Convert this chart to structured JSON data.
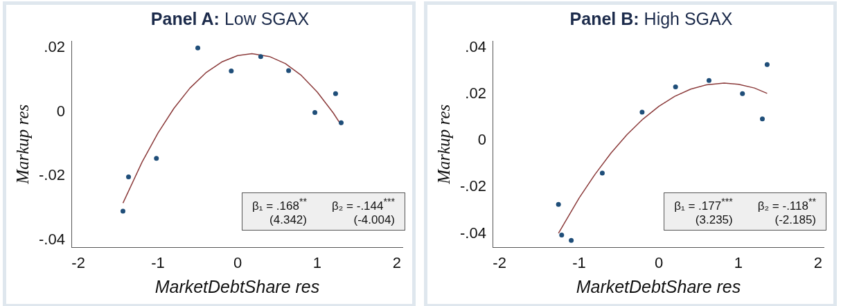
{
  "chart_data": [
    {
      "type": "scatter",
      "title": "Panel A: Low SGAX",
      "xlabel": "MarketDebtShare res",
      "ylabel": "Markup res",
      "xlim": [
        -2.08,
        2.07
      ],
      "ylim": [
        -0.0424,
        0.0222
      ],
      "xticks": [
        -2,
        -1,
        0,
        1,
        2
      ],
      "yticks": [
        {
          "value": -0.04,
          "label": "-.04"
        },
        {
          "value": -0.02,
          "label": "-.02"
        },
        0,
        {
          "value": 0.02,
          "label": ".02"
        }
      ],
      "grid": false,
      "legend": false,
      "marker": "circle",
      "annotations": [
        "β₁ = .168$^{**}$",
        "(4.342)",
        "β₂ = -.144$^{***}$",
        "(-4.004)"
      ],
      "series": [
        {
          "type": "scatter",
          "color": "#1f4e79",
          "x": [
            -1.44,
            -1.37,
            -1.02,
            -0.5,
            -0.08,
            0.29,
            0.64,
            0.97,
            1.23,
            1.3
          ],
          "values": [
            -0.031,
            -0.0203,
            -0.0145,
            0.02,
            0.0128,
            0.0173,
            0.0129,
            -0.0002,
            0.0057,
            -0.0034
          ]
        },
        {
          "type": "line",
          "color": "#8b3a3a",
          "marker": "none",
          "line_style": "solid",
          "x": [
            -1.44,
            -1.2,
            -1.0,
            -0.8,
            -0.6,
            -0.4,
            -0.2,
            0,
            0.18,
            0.4,
            0.6,
            0.8,
            1.0,
            1.2,
            1.3
          ],
          "values": [
            -0.0285,
            -0.0157,
            -0.0066,
            0.0011,
            0.0074,
            0.0122,
            0.0156,
            0.0176,
            0.0182,
            0.0173,
            0.0151,
            0.0114,
            0.0062,
            -0.0003,
            -0.0041
          ]
        }
      ]
    },
    {
      "type": "scatter",
      "title": "Panel B: High SGAX",
      "xlabel": "MarketDebtShare res",
      "ylabel": "Markup res",
      "xlim": [
        -2.08,
        2.07
      ],
      "ylim": [
        -0.046,
        0.043
      ],
      "xticks": [
        -2,
        -1,
        0,
        1,
        2
      ],
      "yticks": [
        {
          "value": -0.04,
          "label": "-.04"
        },
        {
          "value": -0.02,
          "label": "-.02"
        },
        0,
        {
          "value": 0.02,
          "label": ".02"
        },
        {
          "value": 0.04,
          "label": ".04"
        }
      ],
      "grid": false,
      "legend": false,
      "marker": "circle",
      "annotations": [
        "β₁ = .177$^{***}$",
        "(3.235)",
        "β₂ = -.118$^{**}$",
        "(-2.185)"
      ],
      "series": [
        {
          "type": "scatter",
          "color": "#1f4e79",
          "x": [
            -1.26,
            -1.22,
            -1.1,
            -0.71,
            -0.21,
            0.21,
            0.63,
            1.05,
            1.3,
            1.36
          ],
          "values": [
            -0.0274,
            -0.0406,
            -0.0429,
            -0.0139,
            0.0123,
            0.0232,
            0.0259,
            0.0203,
            0.0094,
            0.0328
          ]
        },
        {
          "type": "line",
          "color": "#8b3a3a",
          "marker": "none",
          "line_style": "solid",
          "x": [
            -1.26,
            -1.0,
            -0.8,
            -0.6,
            -0.4,
            -0.2,
            0,
            0.2,
            0.4,
            0.6,
            0.82,
            1.0,
            1.2,
            1.36
          ],
          "values": [
            -0.0398,
            -0.0246,
            -0.0144,
            -0.0053,
            0.0026,
            0.0093,
            0.0148,
            0.0191,
            0.0222,
            0.0241,
            0.0248,
            0.0243,
            0.0227,
            0.0204
          ]
        }
      ]
    }
  ]
}
